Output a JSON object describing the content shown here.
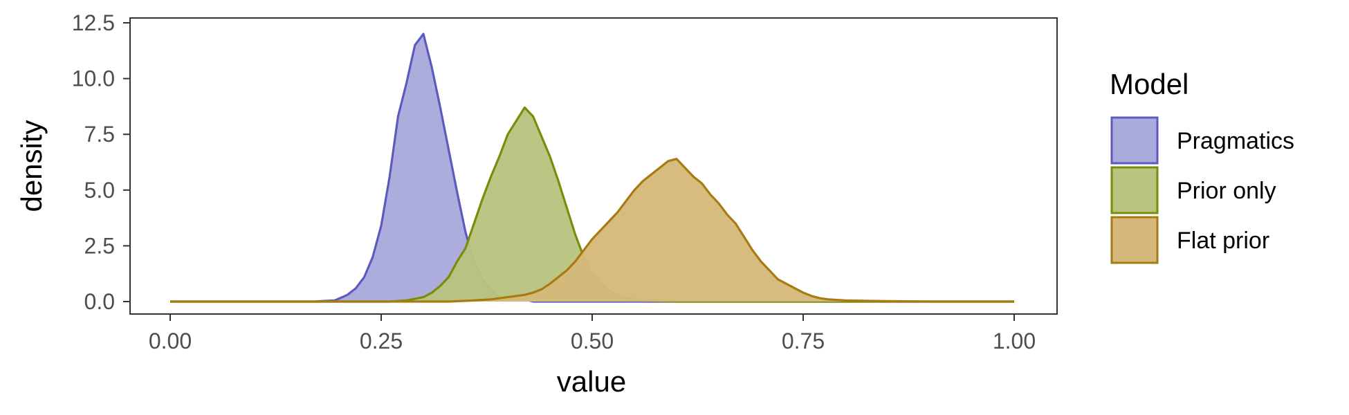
{
  "chart_data": {
    "type": "area",
    "subtype": "density",
    "xlabel": "value",
    "ylabel": "density",
    "xlim": [
      0,
      1
    ],
    "ylim": [
      0,
      12.5
    ],
    "x_ticks": [
      0,
      0.25,
      0.5,
      0.75,
      1
    ],
    "x_tick_labels": [
      "0.00",
      "0.25",
      "0.50",
      "0.75",
      "1.00"
    ],
    "y_ticks": [
      0,
      2.5,
      5,
      7.5,
      10,
      12.5
    ],
    "y_tick_labels": [
      "0.0",
      "2.5",
      "5.0",
      "7.5",
      "10.0",
      "12.5"
    ],
    "grid": false,
    "legend": {
      "title": "Model",
      "position": "right"
    },
    "series": [
      {
        "name": "Pragmatics",
        "fill": "#aaaadc",
        "stroke": "#5b5bbf",
        "points": [
          [
            0.0,
            0
          ],
          [
            0.17,
            0
          ],
          [
            0.195,
            0.05
          ],
          [
            0.21,
            0.3
          ],
          [
            0.22,
            0.6
          ],
          [
            0.23,
            1.1
          ],
          [
            0.24,
            2.0
          ],
          [
            0.25,
            3.4
          ],
          [
            0.26,
            5.6
          ],
          [
            0.27,
            8.3
          ],
          [
            0.28,
            9.8
          ],
          [
            0.29,
            11.5
          ],
          [
            0.3,
            12.0
          ],
          [
            0.31,
            10.5
          ],
          [
            0.32,
            8.7
          ],
          [
            0.33,
            6.8
          ],
          [
            0.34,
            4.9
          ],
          [
            0.35,
            3.1
          ],
          [
            0.36,
            1.8
          ],
          [
            0.37,
            1.0
          ],
          [
            0.38,
            0.5
          ],
          [
            0.39,
            0.2
          ],
          [
            0.4,
            0.1
          ],
          [
            0.41,
            0.05
          ],
          [
            0.42,
            0.1
          ],
          [
            0.43,
            0
          ],
          [
            0.5,
            0
          ],
          [
            1.0,
            0
          ]
        ]
      },
      {
        "name": "Prior only",
        "fill": "#b8c47f",
        "stroke": "#7a8c0a",
        "points": [
          [
            0.0,
            0
          ],
          [
            0.26,
            0
          ],
          [
            0.28,
            0.05
          ],
          [
            0.3,
            0.2
          ],
          [
            0.31,
            0.4
          ],
          [
            0.32,
            0.7
          ],
          [
            0.33,
            1.1
          ],
          [
            0.34,
            1.8
          ],
          [
            0.35,
            2.4
          ],
          [
            0.36,
            3.5
          ],
          [
            0.37,
            4.6
          ],
          [
            0.38,
            5.6
          ],
          [
            0.39,
            6.5
          ],
          [
            0.4,
            7.5
          ],
          [
            0.41,
            8.1
          ],
          [
            0.42,
            8.7
          ],
          [
            0.43,
            8.3
          ],
          [
            0.44,
            7.4
          ],
          [
            0.45,
            6.5
          ],
          [
            0.46,
            5.4
          ],
          [
            0.47,
            4.2
          ],
          [
            0.48,
            3.0
          ],
          [
            0.49,
            2.0
          ],
          [
            0.5,
            1.2
          ],
          [
            0.51,
            0.8
          ],
          [
            0.52,
            0.5
          ],
          [
            0.53,
            0.3
          ],
          [
            0.54,
            0.15
          ],
          [
            0.56,
            0.05
          ],
          [
            0.6,
            0
          ],
          [
            1.0,
            0
          ]
        ]
      },
      {
        "name": "Flat prior",
        "fill": "#d4b97a",
        "stroke": "#a87a10",
        "points": [
          [
            0.0,
            0
          ],
          [
            0.33,
            0
          ],
          [
            0.36,
            0.05
          ],
          [
            0.38,
            0.1
          ],
          [
            0.4,
            0.2
          ],
          [
            0.42,
            0.3
          ],
          [
            0.43,
            0.4
          ],
          [
            0.44,
            0.55
          ],
          [
            0.45,
            0.8
          ],
          [
            0.46,
            1.1
          ],
          [
            0.47,
            1.4
          ],
          [
            0.48,
            1.8
          ],
          [
            0.49,
            2.3
          ],
          [
            0.5,
            2.8
          ],
          [
            0.51,
            3.2
          ],
          [
            0.52,
            3.6
          ],
          [
            0.53,
            4.0
          ],
          [
            0.54,
            4.5
          ],
          [
            0.55,
            5.0
          ],
          [
            0.56,
            5.4
          ],
          [
            0.57,
            5.7
          ],
          [
            0.58,
            6.0
          ],
          [
            0.59,
            6.3
          ],
          [
            0.6,
            6.4
          ],
          [
            0.61,
            6.0
          ],
          [
            0.62,
            5.6
          ],
          [
            0.63,
            5.3
          ],
          [
            0.64,
            4.8
          ],
          [
            0.65,
            4.4
          ],
          [
            0.66,
            3.9
          ],
          [
            0.67,
            3.5
          ],
          [
            0.68,
            2.9
          ],
          [
            0.69,
            2.3
          ],
          [
            0.7,
            1.8
          ],
          [
            0.71,
            1.4
          ],
          [
            0.72,
            1.0
          ],
          [
            0.73,
            0.8
          ],
          [
            0.74,
            0.6
          ],
          [
            0.75,
            0.4
          ],
          [
            0.76,
            0.25
          ],
          [
            0.77,
            0.15
          ],
          [
            0.78,
            0.1
          ],
          [
            0.8,
            0.05
          ],
          [
            0.85,
            0.02
          ],
          [
            0.9,
            0
          ],
          [
            1.0,
            0
          ]
        ]
      }
    ]
  }
}
